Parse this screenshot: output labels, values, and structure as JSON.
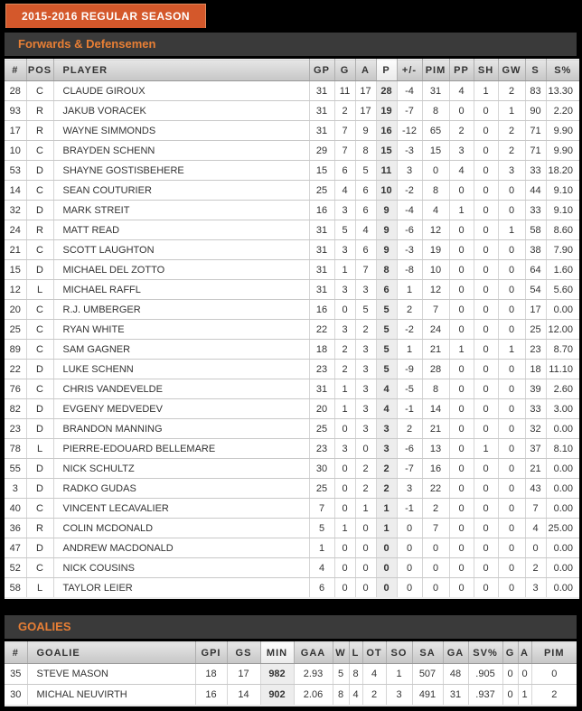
{
  "window": {
    "title_tab": "2015-2016 REGULAR SEASON"
  },
  "colors": {
    "page_bg": "#000000",
    "tab_orange": "#d4582b",
    "section_bar_bg": "#3a3a3a",
    "section_title_orange": "#e87f35",
    "highlight_cell_bg": "#ededed"
  },
  "skater_table": {
    "title": "Forwards & Defensemen",
    "highlight_key": "p",
    "columns": [
      {
        "key": "num",
        "label": "#"
      },
      {
        "key": "pos",
        "label": "POS"
      },
      {
        "key": "player",
        "label": "PLAYER"
      },
      {
        "key": "gp",
        "label": "GP"
      },
      {
        "key": "g",
        "label": "G"
      },
      {
        "key": "a",
        "label": "A"
      },
      {
        "key": "p",
        "label": "P"
      },
      {
        "key": "plusminus",
        "label": "+/-"
      },
      {
        "key": "pim",
        "label": "PIM"
      },
      {
        "key": "pp",
        "label": "PP"
      },
      {
        "key": "sh",
        "label": "SH"
      },
      {
        "key": "gw",
        "label": "GW"
      },
      {
        "key": "s",
        "label": "S"
      },
      {
        "key": "spct",
        "label": "S%"
      }
    ],
    "rows": [
      [
        "28",
        "C",
        "CLAUDE GIROUX",
        "31",
        "11",
        "17",
        "28",
        "-4",
        "31",
        "4",
        "1",
        "2",
        "83",
        "13.30"
      ],
      [
        "93",
        "R",
        "JAKUB VORACEK",
        "31",
        "2",
        "17",
        "19",
        "-7",
        "8",
        "0",
        "0",
        "1",
        "90",
        "2.20"
      ],
      [
        "17",
        "R",
        "WAYNE SIMMONDS",
        "31",
        "7",
        "9",
        "16",
        "-12",
        "65",
        "2",
        "0",
        "2",
        "71",
        "9.90"
      ],
      [
        "10",
        "C",
        "BRAYDEN SCHENN",
        "29",
        "7",
        "8",
        "15",
        "-3",
        "15",
        "3",
        "0",
        "2",
        "71",
        "9.90"
      ],
      [
        "53",
        "D",
        "SHAYNE GOSTISBEHERE",
        "15",
        "6",
        "5",
        "11",
        "3",
        "0",
        "4",
        "0",
        "3",
        "33",
        "18.20"
      ],
      [
        "14",
        "C",
        "SEAN COUTURIER",
        "25",
        "4",
        "6",
        "10",
        "-2",
        "8",
        "0",
        "0",
        "0",
        "44",
        "9.10"
      ],
      [
        "32",
        "D",
        "MARK STREIT",
        "16",
        "3",
        "6",
        "9",
        "-4",
        "4",
        "1",
        "0",
        "0",
        "33",
        "9.10"
      ],
      [
        "24",
        "R",
        "MATT READ",
        "31",
        "5",
        "4",
        "9",
        "-6",
        "12",
        "0",
        "0",
        "1",
        "58",
        "8.60"
      ],
      [
        "21",
        "C",
        "SCOTT LAUGHTON",
        "31",
        "3",
        "6",
        "9",
        "-3",
        "19",
        "0",
        "0",
        "0",
        "38",
        "7.90"
      ],
      [
        "15",
        "D",
        "MICHAEL DEL ZOTTO",
        "31",
        "1",
        "7",
        "8",
        "-8",
        "10",
        "0",
        "0",
        "0",
        "64",
        "1.60"
      ],
      [
        "12",
        "L",
        "MICHAEL RAFFL",
        "31",
        "3",
        "3",
        "6",
        "1",
        "12",
        "0",
        "0",
        "0",
        "54",
        "5.60"
      ],
      [
        "20",
        "C",
        "R.J. UMBERGER",
        "16",
        "0",
        "5",
        "5",
        "2",
        "7",
        "0",
        "0",
        "0",
        "17",
        "0.00"
      ],
      [
        "25",
        "C",
        "RYAN WHITE",
        "22",
        "3",
        "2",
        "5",
        "-2",
        "24",
        "0",
        "0",
        "0",
        "25",
        "12.00"
      ],
      [
        "89",
        "C",
        "SAM GAGNER",
        "18",
        "2",
        "3",
        "5",
        "1",
        "21",
        "1",
        "0",
        "1",
        "23",
        "8.70"
      ],
      [
        "22",
        "D",
        "LUKE SCHENN",
        "23",
        "2",
        "3",
        "5",
        "-9",
        "28",
        "0",
        "0",
        "0",
        "18",
        "11.10"
      ],
      [
        "76",
        "C",
        "CHRIS VANDEVELDE",
        "31",
        "1",
        "3",
        "4",
        "-5",
        "8",
        "0",
        "0",
        "0",
        "39",
        "2.60"
      ],
      [
        "82",
        "D",
        "EVGENY MEDVEDEV",
        "20",
        "1",
        "3",
        "4",
        "-1",
        "14",
        "0",
        "0",
        "0",
        "33",
        "3.00"
      ],
      [
        "23",
        "D",
        "BRANDON MANNING",
        "25",
        "0",
        "3",
        "3",
        "2",
        "21",
        "0",
        "0",
        "0",
        "32",
        "0.00"
      ],
      [
        "78",
        "L",
        "PIERRE-EDOUARD BELLEMARE",
        "23",
        "3",
        "0",
        "3",
        "-6",
        "13",
        "0",
        "1",
        "0",
        "37",
        "8.10"
      ],
      [
        "55",
        "D",
        "NICK SCHULTZ",
        "30",
        "0",
        "2",
        "2",
        "-7",
        "16",
        "0",
        "0",
        "0",
        "21",
        "0.00"
      ],
      [
        "3",
        "D",
        "RADKO GUDAS",
        "25",
        "0",
        "2",
        "2",
        "3",
        "22",
        "0",
        "0",
        "0",
        "43",
        "0.00"
      ],
      [
        "40",
        "C",
        "VINCENT LECAVALIER",
        "7",
        "0",
        "1",
        "1",
        "-1",
        "2",
        "0",
        "0",
        "0",
        "7",
        "0.00"
      ],
      [
        "36",
        "R",
        "COLIN MCDONALD",
        "5",
        "1",
        "0",
        "1",
        "0",
        "7",
        "0",
        "0",
        "0",
        "4",
        "25.00"
      ],
      [
        "47",
        "D",
        "ANDREW MACDONALD",
        "1",
        "0",
        "0",
        "0",
        "0",
        "0",
        "0",
        "0",
        "0",
        "0",
        "0.00"
      ],
      [
        "52",
        "C",
        "NICK COUSINS",
        "4",
        "0",
        "0",
        "0",
        "0",
        "0",
        "0",
        "0",
        "0",
        "2",
        "0.00"
      ],
      [
        "58",
        "L",
        "TAYLOR LEIER",
        "6",
        "0",
        "0",
        "0",
        "0",
        "0",
        "0",
        "0",
        "0",
        "3",
        "0.00"
      ]
    ]
  },
  "goalie_table": {
    "title": "GOALIES",
    "highlight_key": "min",
    "columns": [
      {
        "key": "num",
        "label": "#"
      },
      {
        "key": "goalie",
        "label": "GOALIE"
      },
      {
        "key": "gpi",
        "label": "GPI"
      },
      {
        "key": "gs",
        "label": "GS"
      },
      {
        "key": "min",
        "label": "MIN"
      },
      {
        "key": "gaa",
        "label": "GAA"
      },
      {
        "key": "w",
        "label": "W"
      },
      {
        "key": "l",
        "label": "L"
      },
      {
        "key": "ot",
        "label": "OT"
      },
      {
        "key": "so",
        "label": "SO"
      },
      {
        "key": "sa",
        "label": "SA"
      },
      {
        "key": "ga",
        "label": "GA"
      },
      {
        "key": "svpct",
        "label": "SV%"
      },
      {
        "key": "g",
        "label": "G"
      },
      {
        "key": "a",
        "label": "A"
      },
      {
        "key": "pim",
        "label": "PIM"
      }
    ],
    "rows": [
      [
        "35",
        "STEVE MASON",
        "18",
        "17",
        "982",
        "2.93",
        "5",
        "8",
        "4",
        "1",
        "507",
        "48",
        ".905",
        "0",
        "0",
        "0"
      ],
      [
        "30",
        "MICHAL NEUVIRTH",
        "16",
        "14",
        "902",
        "2.06",
        "8",
        "4",
        "2",
        "3",
        "491",
        "31",
        ".937",
        "0",
        "1",
        "2"
      ]
    ]
  }
}
